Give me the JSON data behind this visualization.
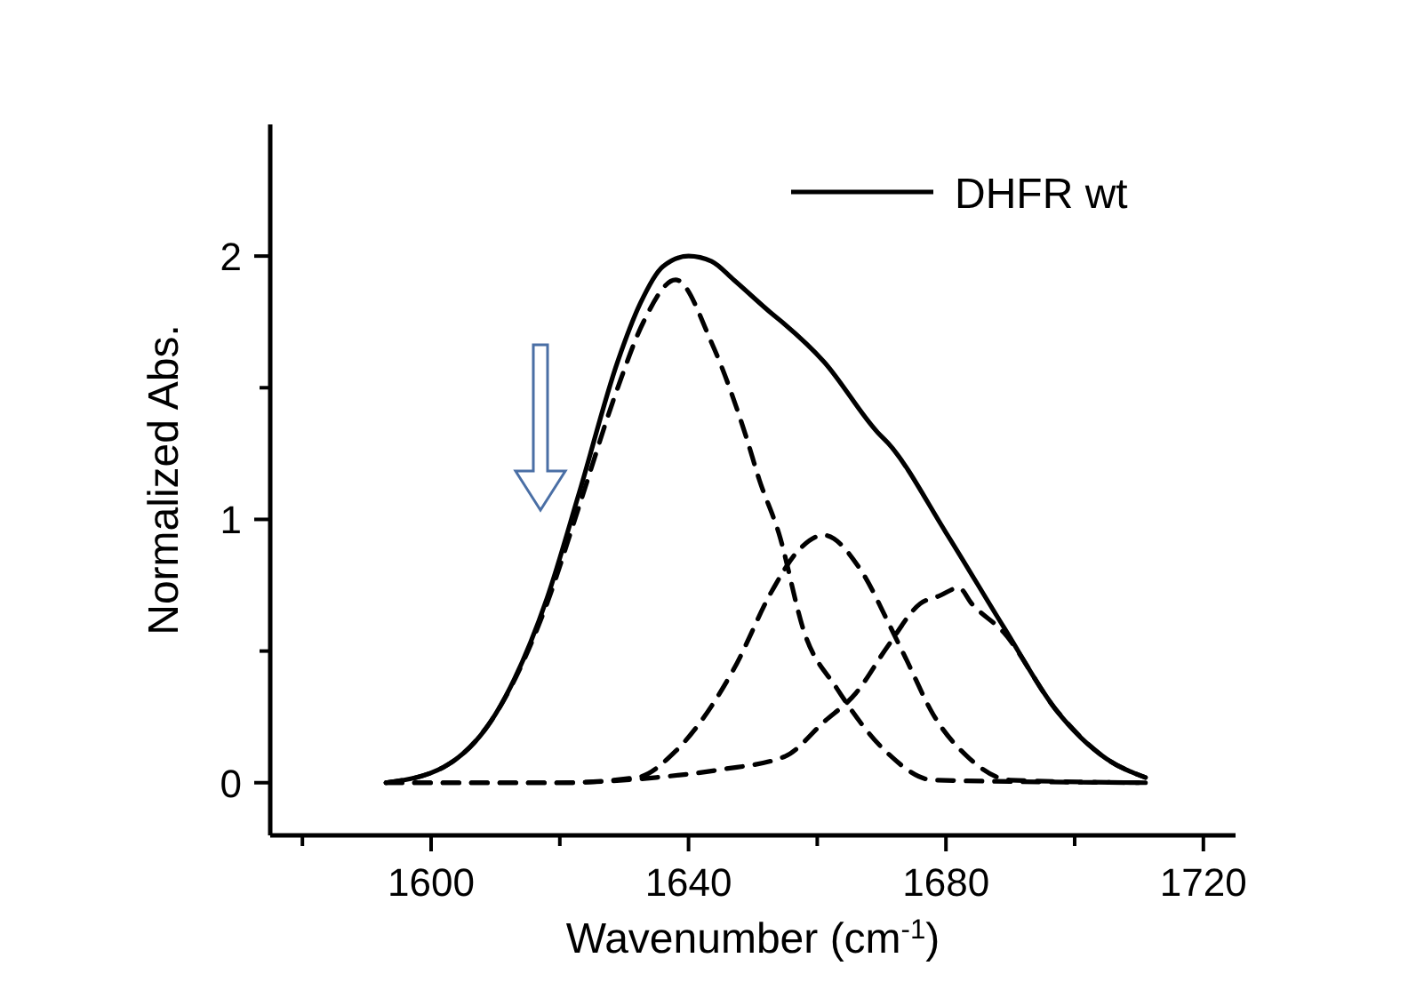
{
  "chart_data": {
    "type": "line",
    "xlabel": "Wavenumber (cm$^{-1}$)",
    "ylabel": "Normalized Abs.",
    "xlim": [
      1575,
      1725
    ],
    "ylim": [
      -0.2,
      2.5
    ],
    "xticks": [
      {
        "value": 1580,
        "label": null
      },
      1600,
      {
        "value": 1620,
        "label": null
      },
      1640,
      {
        "value": 1660,
        "label": null
      },
      1680,
      {
        "value": 1700,
        "label": null
      },
      1720
    ],
    "yticks": [
      0,
      {
        "value": 0.5,
        "label": null
      },
      1,
      {
        "value": 1.5,
        "label": null
      },
      2
    ],
    "grid": false,
    "legend": "top right",
    "marker": "none",
    "series": [
      {
        "name": "DHFR wt",
        "color": "#000000",
        "line_style": "solid",
        "x": [
          1593,
          1602,
          1610,
          1618,
          1623,
          1629,
          1632.5,
          1636,
          1640,
          1643.6,
          1647,
          1653,
          1655,
          1661,
          1669.4,
          1671,
          1680,
          1689,
          1697,
          1705,
          1711
        ],
        "values": [
          0,
          0.06,
          0.26,
          0.7,
          1.1,
          1.6,
          1.82,
          1.96,
          2.0,
          1.98,
          1.91,
          1.78,
          1.74,
          1.6,
          1.33,
          1.29,
          0.95,
          0.59,
          0.28,
          0.09,
          0.02
        ]
      },
      {
        "color": "#000000",
        "line_style": "dashed",
        "x": [
          1593,
          1602,
          1610,
          1618,
          1623,
          1629,
          1633,
          1638,
          1643.6,
          1649,
          1651,
          1654,
          1658,
          1663,
          1670.6,
          1678,
          1711
        ],
        "values": [
          0,
          0.06,
          0.26,
          0.68,
          1.05,
          1.5,
          1.75,
          1.91,
          1.67,
          1.31,
          1.15,
          0.95,
          0.57,
          0.36,
          0.12,
          0.01,
          0
        ]
      },
      {
        "color": "#000000",
        "line_style": "dashed",
        "x": [
          1593,
          1620,
          1632,
          1638,
          1647,
          1653,
          1657,
          1661,
          1666.7,
          1671.4,
          1674,
          1678,
          1683.3,
          1690,
          1711
        ],
        "values": [
          0,
          0,
          0.02,
          0.12,
          0.43,
          0.73,
          0.88,
          0.94,
          0.81,
          0.59,
          0.46,
          0.26,
          0.1,
          0.01,
          0
        ]
      },
      {
        "color": "#000000",
        "line_style": "dashed",
        "x": [
          1593,
          1620,
          1635,
          1645,
          1655,
          1661,
          1666,
          1671,
          1676,
          1679,
          1682,
          1684,
          1689,
          1697,
          1705,
          1711
        ],
        "values": [
          0,
          0,
          0.02,
          0.05,
          0.1,
          0.23,
          0.34,
          0.52,
          0.68,
          0.71,
          0.74,
          0.68,
          0.57,
          0.28,
          0.09,
          0.02
        ]
      }
    ]
  }
}
